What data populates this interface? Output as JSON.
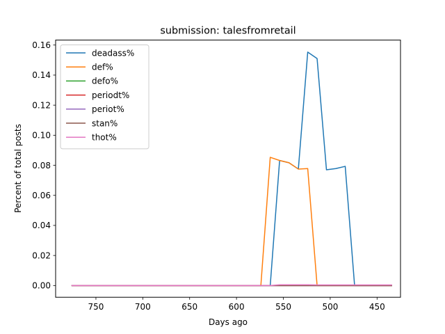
{
  "chart_data": {
    "type": "line",
    "title": "submission: talesfromretail",
    "xlabel": "Days ago",
    "ylabel": "Percent of total posts",
    "x_inverted": true,
    "xlim": [
      793,
      425
    ],
    "ylim": [
      -0.0078,
      0.1633
    ],
    "xticks": [
      750,
      700,
      650,
      600,
      550,
      500,
      450
    ],
    "yticks": [
      0.0,
      0.02,
      0.04,
      0.06,
      0.08,
      0.1,
      0.12,
      0.14,
      0.16
    ],
    "ytick_decimals": 2,
    "grid": false,
    "legend_position": "top-left",
    "series": [
      {
        "name": "deadass%",
        "color": "#1f77b4",
        "points": [
          [
            776,
            0
          ],
          [
            770,
            0
          ],
          [
            760,
            0
          ],
          [
            750,
            0
          ],
          [
            740,
            0
          ],
          [
            730,
            0
          ],
          [
            720,
            0
          ],
          [
            710,
            0
          ],
          [
            700,
            0
          ],
          [
            690,
            0
          ],
          [
            680,
            0
          ],
          [
            670,
            0
          ],
          [
            660,
            0
          ],
          [
            650,
            0
          ],
          [
            640,
            0
          ],
          [
            630,
            0
          ],
          [
            620,
            0
          ],
          [
            610,
            0
          ],
          [
            600,
            0
          ],
          [
            590,
            0
          ],
          [
            580,
            0
          ],
          [
            574,
            0
          ],
          [
            564,
            0
          ],
          [
            554,
            0.0832
          ],
          [
            544,
            0.0817
          ],
          [
            534,
            0.0775
          ],
          [
            524,
            0.1553
          ],
          [
            514,
            0.151
          ],
          [
            504,
            0.077
          ],
          [
            494,
            0.0778
          ],
          [
            484,
            0.0793
          ],
          [
            474,
            0
          ],
          [
            464,
            0
          ],
          [
            454,
            0
          ],
          [
            444,
            0
          ],
          [
            434,
            0
          ]
        ]
      },
      {
        "name": "def%",
        "color": "#ff7f0e",
        "points": [
          [
            776,
            0
          ],
          [
            770,
            0
          ],
          [
            760,
            0
          ],
          [
            750,
            0
          ],
          [
            740,
            0
          ],
          [
            730,
            0
          ],
          [
            720,
            0
          ],
          [
            710,
            0
          ],
          [
            700,
            0
          ],
          [
            690,
            0
          ],
          [
            680,
            0
          ],
          [
            670,
            0
          ],
          [
            660,
            0
          ],
          [
            650,
            0
          ],
          [
            640,
            0
          ],
          [
            630,
            0
          ],
          [
            620,
            0
          ],
          [
            610,
            0
          ],
          [
            600,
            0
          ],
          [
            590,
            0
          ],
          [
            580,
            0
          ],
          [
            574,
            0
          ],
          [
            564,
            0.0853
          ],
          [
            554,
            0.0832
          ],
          [
            544,
            0.0817
          ],
          [
            534,
            0.0775
          ],
          [
            524,
            0.0778
          ],
          [
            514,
            0
          ],
          [
            504,
            0
          ],
          [
            494,
            0
          ],
          [
            484,
            0
          ],
          [
            474,
            0
          ],
          [
            464,
            0
          ],
          [
            454,
            0
          ],
          [
            444,
            0
          ],
          [
            434,
            0
          ]
        ]
      },
      {
        "name": "defo%",
        "color": "#2ca02c",
        "points": [
          [
            776,
            0
          ],
          [
            434,
            0
          ]
        ]
      },
      {
        "name": "periodt%",
        "color": "#d62728",
        "points": [
          [
            776,
            0
          ],
          [
            434,
            0
          ]
        ]
      },
      {
        "name": "periot%",
        "color": "#9467bd",
        "points": [
          [
            776,
            0
          ],
          [
            434,
            0
          ]
        ]
      },
      {
        "name": "stan%",
        "color": "#8c564b",
        "points": [
          [
            776,
            0
          ],
          [
            434,
            0
          ]
        ]
      },
      {
        "name": "thot%",
        "color": "#e377c2",
        "points": [
          [
            776,
            0
          ],
          [
            564,
            0
          ],
          [
            554,
            0.0005
          ],
          [
            544,
            0.0005
          ],
          [
            534,
            0.0005
          ],
          [
            524,
            0.0005
          ],
          [
            514,
            0.0004
          ],
          [
            504,
            0.0004
          ],
          [
            494,
            0.0004
          ],
          [
            484,
            0.0004
          ],
          [
            474,
            0.0004
          ],
          [
            464,
            0.0004
          ],
          [
            454,
            0.0004
          ],
          [
            444,
            0.0004
          ],
          [
            434,
            0.0004
          ]
        ]
      }
    ]
  }
}
